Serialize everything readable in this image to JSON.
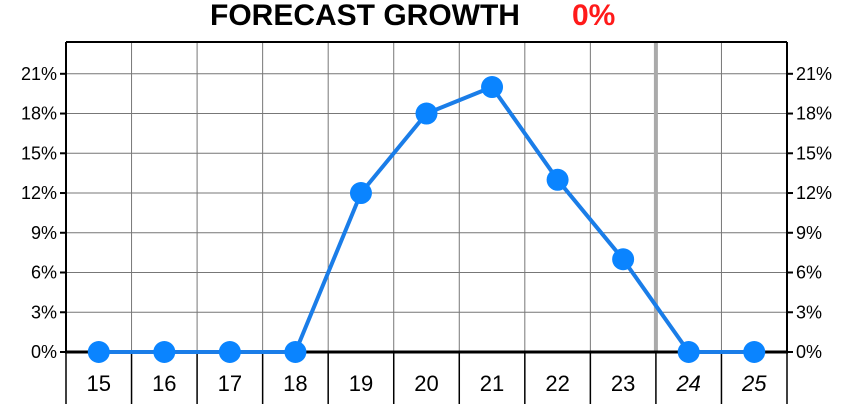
{
  "title": {
    "text": "FORECAST GROWTH",
    "value": "0%",
    "value_color": "#ff1a1a"
  },
  "chart_data": {
    "type": "line",
    "title": "FORECAST GROWTH",
    "xlabel": "",
    "ylabel": "",
    "categories": [
      "15",
      "16",
      "17",
      "18",
      "19",
      "20",
      "21",
      "22",
      "23",
      "24",
      "25"
    ],
    "italic_categories": [
      "24",
      "25"
    ],
    "series": [
      {
        "values": [
          0,
          0,
          0,
          0,
          12,
          18,
          20,
          13,
          7,
          0,
          0
        ],
        "color": "#1a7de8"
      }
    ],
    "y_ticks": [
      "0%",
      "3%",
      "6%",
      "9%",
      "12%",
      "15%",
      "18%",
      "21%"
    ],
    "y_tick_values": [
      0,
      3,
      6,
      9,
      12,
      15,
      18,
      21
    ],
    "ylim": [
      0,
      23.4
    ],
    "grid": true,
    "forecast_divider_after": "23",
    "y_axis_labels": "both-sides",
    "line_color": "#1a7de8",
    "marker_color": "#0a84ff"
  }
}
